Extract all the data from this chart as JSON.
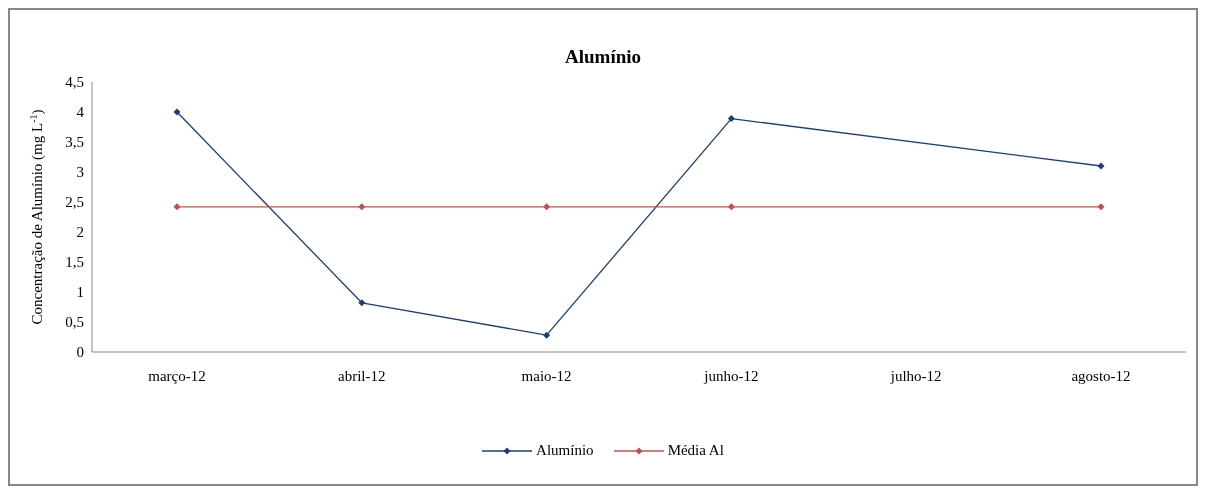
{
  "chart_data": {
    "type": "line",
    "title": "Alumínio",
    "ylabel": "Concentração de Alumínio (mg L$^{-1}$)",
    "categories": [
      "março-12",
      "abril-12",
      "maio-12",
      "junho-12",
      "julho-12",
      "agosto-12"
    ],
    "series": [
      {
        "name": "Alumínio",
        "color": "#1f3d7a",
        "values": [
          4.0,
          0.82,
          0.28,
          3.89,
          null,
          3.1
        ]
      },
      {
        "name": "Média Al",
        "color": "#c0504d",
        "values": [
          2.42,
          2.42,
          2.42,
          2.42,
          null,
          2.42
        ]
      }
    ],
    "ylim": [
      0,
      4.5
    ],
    "yticks": [
      {
        "value": 0,
        "label": "0"
      },
      {
        "value": 0.5,
        "label": "0,5"
      },
      {
        "value": 1,
        "label": "1"
      },
      {
        "value": 1.5,
        "label": "1,5"
      },
      {
        "value": 2,
        "label": "2"
      },
      {
        "value": 2.5,
        "label": "2,5"
      },
      {
        "value": 3,
        "label": "3"
      },
      {
        "value": 3.5,
        "label": "3,5"
      },
      {
        "value": 4,
        "label": "4"
      },
      {
        "value": 4.5,
        "label": "4,5"
      }
    ],
    "grid": false,
    "legend": "bottom",
    "marker": "diamond",
    "line_style": "solid"
  }
}
